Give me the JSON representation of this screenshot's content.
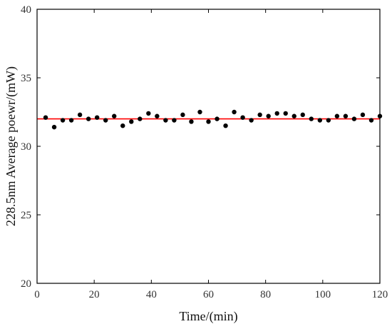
{
  "chart_data": {
    "type": "scatter",
    "title": "",
    "xlabel": "Time/(min)",
    "ylabel": "228.5nm Average poewr/(mW)",
    "xlim": [
      0,
      120
    ],
    "ylim": [
      20,
      40
    ],
    "xticks": [
      0,
      20,
      40,
      60,
      80,
      100,
      120
    ],
    "yticks": [
      20,
      25,
      30,
      35,
      40
    ],
    "grid": false,
    "legend": "none",
    "series": [
      {
        "type": "scatter",
        "color": "#000000",
        "x": [
          3,
          6,
          9,
          12,
          15,
          18,
          21,
          24,
          27,
          30,
          33,
          36,
          39,
          42,
          45,
          48,
          51,
          54,
          57,
          60,
          63,
          66,
          69,
          72,
          75,
          78,
          81,
          84,
          87,
          90,
          93,
          96,
          99,
          102,
          105,
          108,
          111,
          114,
          117,
          120
        ],
        "y": [
          32.1,
          31.4,
          31.9,
          31.9,
          32.3,
          32.0,
          32.1,
          31.9,
          32.2,
          31.5,
          31.8,
          32.0,
          32.4,
          32.2,
          31.9,
          31.9,
          32.3,
          31.8,
          32.5,
          31.8,
          32.0,
          31.5,
          32.5,
          32.1,
          31.9,
          32.3,
          32.2,
          32.4,
          32.4,
          32.2,
          32.3,
          32.0,
          31.9,
          31.9,
          32.2,
          32.2,
          32.0,
          32.3,
          31.9,
          32.2
        ]
      },
      {
        "type": "line",
        "color": "#ff0000",
        "x": [
          0,
          120
        ],
        "y": [
          32.0,
          32.0
        ]
      }
    ]
  }
}
